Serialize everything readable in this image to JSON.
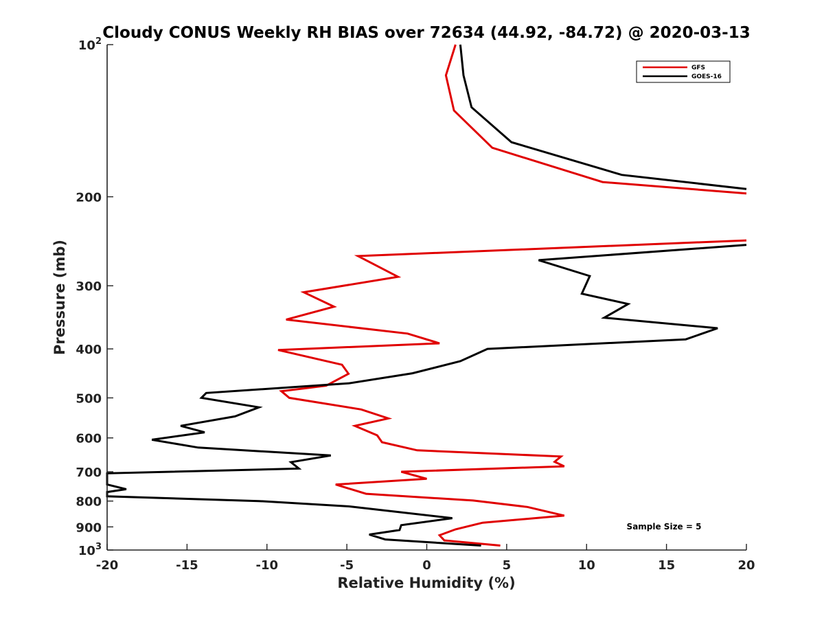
{
  "chart_data": {
    "type": "line",
    "title": "Cloudy CONUS Weekly RH BIAS over 72634 (44.92, -84.72) @ 2020-03-13",
    "xlabel": "Relative Humidity (%)",
    "ylabel": "Pressure (mb)",
    "xlim": [
      -20,
      20
    ],
    "ylim": [
      100,
      1000
    ],
    "y_scale": "log",
    "y_reversed": true,
    "grid": false,
    "legend_position": "top-right",
    "x_ticks": [
      "-20",
      "-15",
      "-10",
      "-5",
      "0",
      "5",
      "10",
      "15",
      "20"
    ],
    "y_ticks": [
      {
        "value": 100,
        "base": "10",
        "exp": "2"
      },
      {
        "value": 200,
        "label": "200"
      },
      {
        "value": 300,
        "label": "300"
      },
      {
        "value": 400,
        "label": "400"
      },
      {
        "value": 500,
        "label": "500"
      },
      {
        "value": 600,
        "label": "600"
      },
      {
        "value": 700,
        "label": "700"
      },
      {
        "value": 800,
        "label": "800"
      },
      {
        "value": 900,
        "label": "900"
      },
      {
        "value": 1000,
        "base": "10",
        "exp": "3"
      }
    ],
    "annotation": "Sample Size = 5",
    "series": [
      {
        "name": "GFS",
        "color": "#e00000",
        "segments": [
          {
            "x": [
              1.8,
              1.2,
              1.7,
              4.1,
              11.0,
              20.0
            ],
            "y": [
              100,
              115,
              135,
              160,
              187,
              197
            ]
          },
          {
            "x": [
              20.0,
              -4.3,
              -1.8,
              -7.7,
              -5.8,
              -8.8,
              -1.2,
              0.8,
              -9.3,
              -5.3,
              -4.9,
              -6.3,
              -9.1,
              -8.6,
              -4.1,
              -2.4,
              -4.5,
              -3.1,
              -2.8,
              -0.6,
              8.4,
              8.0,
              8.6,
              -1.6,
              0.0,
              -5.7,
              -3.8,
              2.9,
              6.3,
              8.6,
              3.5,
              1.8,
              0.8,
              1.1,
              4.6
            ],
            "y": [
              244,
              262,
              288,
              309,
              330,
              350,
              373,
              390,
              402,
              430,
              448,
              473,
              485,
              500,
              527,
              549,
              568,
              593,
              612,
              635,
              653,
              669,
              683,
              700,
              723,
              742,
              774,
              798,
              822,
              855,
              883,
              910,
              935,
              957,
              980
            ]
          }
        ]
      },
      {
        "name": "GOES-16",
        "color": "#000000",
        "segments": [
          {
            "x": [
              2.1,
              2.3,
              2.8,
              5.3,
              12.2,
              20.0
            ],
            "y": [
              100,
              115,
              133,
              156,
              181,
              193
            ]
          },
          {
            "x": [
              20.0,
              7.0,
              10.2,
              9.7,
              12.6,
              11.1,
              18.2,
              16.2,
              3.8,
              2.1,
              -0.9,
              -4.9,
              -13.8,
              -14.1,
              -10.5,
              -12.0,
              -15.4,
              -13.9,
              -17.2,
              -14.3,
              -6.0,
              -8.5,
              -8.0,
              -20.0,
              -20.0,
              -18.8,
              -20.0,
              -20.0,
              -10.5,
              -4.8,
              1.6,
              -1.6,
              -1.7,
              -3.6,
              -2.6,
              3.4
            ],
            "y": [
              249,
              267,
              287,
              311,
              326,
              347,
              364,
              383,
              400,
              423,
              447,
              468,
              489,
              500,
              522,
              544,
              568,
              585,
              605,
              627,
              650,
              670,
              690,
              705,
              742,
              758,
              768,
              783,
              800,
              820,
              865,
              893,
              913,
              932,
              953,
              980
            ]
          }
        ]
      }
    ]
  }
}
